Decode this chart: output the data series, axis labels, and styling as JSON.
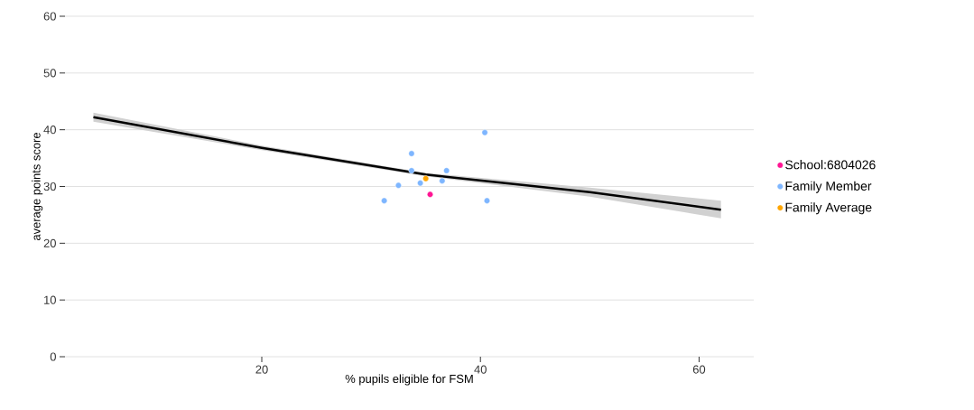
{
  "chart_data": {
    "type": "scatter",
    "xlabel": "% pupils eligible for FSM",
    "ylabel": "average points score",
    "xlim": [
      2,
      65
    ],
    "ylim": [
      0,
      60
    ],
    "xticks": [
      20,
      40,
      60
    ],
    "yticks": [
      0,
      10,
      20,
      30,
      40,
      50,
      60
    ],
    "grid": "y",
    "legend": "right",
    "series": [
      {
        "type": "line",
        "marker": "none",
        "color": "#000000",
        "x": [
          4.6,
          20,
          35,
          50,
          62
        ],
        "values": [
          42.2,
          36.8,
          32.1,
          29.0,
          25.9
        ],
        "lower": [
          41.4,
          36.4,
          31.8,
          28.2,
          24.4
        ],
        "upper": [
          43.0,
          37.2,
          32.4,
          29.8,
          27.5
        ]
      },
      {
        "name": "School:6804026",
        "marker": "circle",
        "color": "#ff1493",
        "x": [
          35.4
        ],
        "values": [
          28.6
        ]
      },
      {
        "name": "Family Member",
        "marker": "circle",
        "color": "#7eb6ff",
        "x": [
          40.4,
          33.7,
          33.7,
          36.9,
          32.5,
          34.5,
          36.5,
          31.2,
          40.6
        ],
        "values": [
          39.5,
          35.8,
          32.8,
          32.8,
          30.2,
          30.6,
          31.0,
          27.5,
          27.5
        ]
      },
      {
        "name": "Family Average",
        "marker": "circle",
        "color": "#ffa500",
        "x": [
          35.0
        ],
        "values": [
          31.4
        ]
      }
    ]
  }
}
